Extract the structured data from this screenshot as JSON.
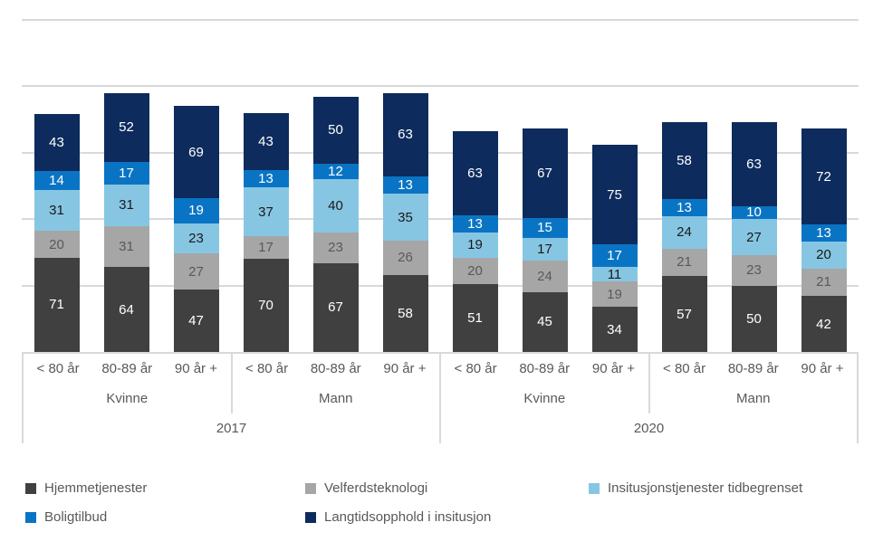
{
  "chart_data": {
    "type": "bar",
    "subtype": "stacked-column",
    "title": "",
    "xlabel": "",
    "ylabel": "",
    "ylim": [
      0,
      250
    ],
    "grid_step": 50,
    "grid_visible": true,
    "legend_position": "bottom",
    "axis_color": "#d9d9d9",
    "axis_text_color": "#595959",
    "groups": [
      {
        "year": "2017",
        "genders": [
          {
            "label": "Kvinne",
            "ages": [
              "< 80 år",
              "80-89 år",
              "90 år +"
            ]
          },
          {
            "label": "Mann",
            "ages": [
              "< 80 år",
              "80-89 år",
              "90 år +"
            ]
          }
        ]
      },
      {
        "year": "2020",
        "genders": [
          {
            "label": "Kvinne",
            "ages": [
              "< 80 år",
              "80-89 år",
              "90 år +"
            ]
          },
          {
            "label": "Mann",
            "ages": [
              "< 80 år",
              "80-89 år",
              "90 år +"
            ]
          }
        ]
      }
    ],
    "categories": [
      {
        "year": "2017",
        "gender": "Kvinne",
        "age": "< 80 år"
      },
      {
        "year": "2017",
        "gender": "Kvinne",
        "age": "80-89 år"
      },
      {
        "year": "2017",
        "gender": "Kvinne",
        "age": "90 år +"
      },
      {
        "year": "2017",
        "gender": "Mann",
        "age": "< 80 år"
      },
      {
        "year": "2017",
        "gender": "Mann",
        "age": "80-89 år"
      },
      {
        "year": "2017",
        "gender": "Mann",
        "age": "90 år +"
      },
      {
        "year": "2020",
        "gender": "Kvinne",
        "age": "< 80 år"
      },
      {
        "year": "2020",
        "gender": "Kvinne",
        "age": "80-89 år"
      },
      {
        "year": "2020",
        "gender": "Kvinne",
        "age": "90 år +"
      },
      {
        "year": "2020",
        "gender": "Mann",
        "age": "< 80 år"
      },
      {
        "year": "2020",
        "gender": "Mann",
        "age": "80-89 år"
      },
      {
        "year": "2020",
        "gender": "Mann",
        "age": "90 år +"
      }
    ],
    "series": [
      {
        "name": "Hjemmetjenester",
        "color": "#404040",
        "label_color": "#ffffff",
        "values": [
          71,
          64,
          47,
          70,
          67,
          58,
          51,
          45,
          34,
          57,
          50,
          42
        ]
      },
      {
        "name": "Velferdsteknologi",
        "color": "#a6a6a6",
        "label_color": "#595959",
        "values": [
          20,
          31,
          27,
          17,
          23,
          26,
          20,
          24,
          19,
          21,
          23,
          21
        ]
      },
      {
        "name": "Insitusjonstjenester tidbegrenset",
        "color": "#87c6e3",
        "label_color": "#1a1a1a",
        "values": [
          31,
          31,
          23,
          37,
          40,
          35,
          19,
          17,
          11,
          24,
          27,
          20
        ]
      },
      {
        "name": "Boligtilbud",
        "color": "#0a74c4",
        "label_color": "#ffffff",
        "values": [
          14,
          17,
          19,
          13,
          12,
          13,
          13,
          15,
          17,
          13,
          10,
          13
        ]
      },
      {
        "name": "Langtidsopphold i insitusjon",
        "color": "#0d2b5c",
        "label_color": "#ffffff",
        "values": [
          43,
          52,
          69,
          43,
          50,
          63,
          63,
          67,
          75,
          58,
          63,
          72
        ]
      }
    ]
  }
}
